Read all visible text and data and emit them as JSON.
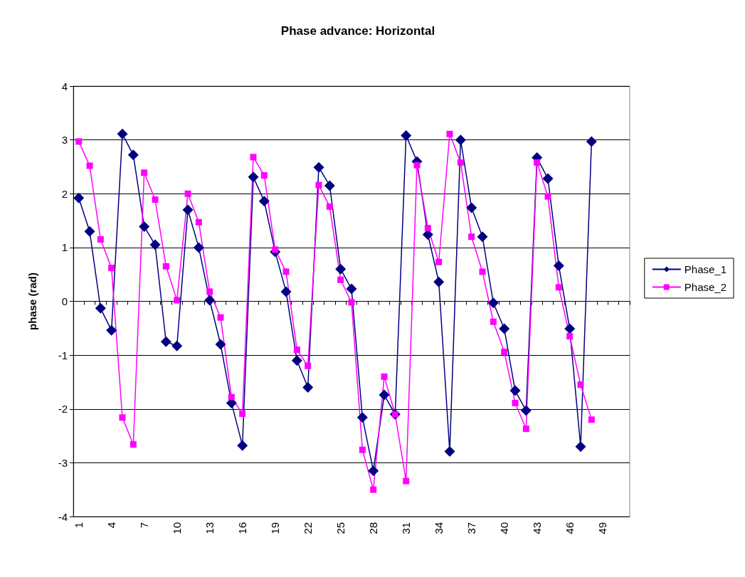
{
  "chart_data": {
    "type": "line",
    "title": "Phase advance: Horizontal",
    "ylabel": "phase (rad)",
    "categories": [
      "1",
      null,
      null,
      "4",
      null,
      null,
      "7",
      null,
      null,
      "10",
      null,
      null,
      "13",
      null,
      null,
      "16",
      null,
      null,
      "19",
      null,
      null,
      "22",
      null,
      null,
      "25",
      null,
      null,
      "28",
      null,
      null,
      "31",
      null,
      null,
      "34",
      null,
      null,
      "37",
      null,
      null,
      "40",
      null,
      null,
      "43",
      null,
      null,
      "46",
      null,
      null,
      "49",
      null,
      null
    ],
    "series": [
      {
        "name": "Phase_1",
        "color": "#000080",
        "marker": "diamond",
        "values": [
          1.92,
          1.3,
          -0.13,
          -0.54,
          3.11,
          2.72,
          1.39,
          1.05,
          -0.75,
          -0.83,
          1.7,
          1.0,
          0.02,
          -0.8,
          -1.89,
          -2.68,
          2.31,
          1.86,
          0.92,
          0.18,
          -1.1,
          -1.6,
          2.49,
          2.15,
          0.6,
          0.23,
          -2.16,
          -3.15,
          -1.74,
          -2.1,
          3.08,
          2.6,
          1.24,
          0.36,
          -2.79,
          3.0,
          1.74,
          1.2,
          -0.03,
          -0.51,
          -1.66,
          -2.03,
          2.67,
          2.28,
          0.66,
          -0.51,
          -2.7,
          2.97,
          null,
          null,
          null
        ]
      },
      {
        "name": "Phase_2",
        "color": "#ff00ff",
        "marker": "square",
        "values": [
          2.97,
          2.52,
          1.15,
          0.62,
          -2.16,
          -2.66,
          2.39,
          1.89,
          0.65,
          0.02,
          2.0,
          1.47,
          0.18,
          -0.3,
          -1.78,
          -2.09,
          2.68,
          2.34,
          0.96,
          0.55,
          -0.9,
          -1.2,
          2.16,
          1.76,
          0.4,
          -0.02,
          -2.76,
          -3.5,
          -1.4,
          -2.1,
          -3.34,
          2.53,
          1.36,
          0.73,
          3.11,
          2.58,
          1.2,
          0.55,
          -0.38,
          -0.94,
          -1.89,
          -2.37,
          2.58,
          1.95,
          0.26,
          -0.65,
          -1.55,
          -2.2,
          null,
          null,
          null
        ]
      }
    ],
    "ylim": [
      -4,
      4
    ],
    "yticks": [
      -4,
      -3,
      -2,
      -1,
      0,
      1,
      2,
      3,
      4
    ],
    "grid": "y",
    "legend": "right",
    "line_style": "solid"
  }
}
